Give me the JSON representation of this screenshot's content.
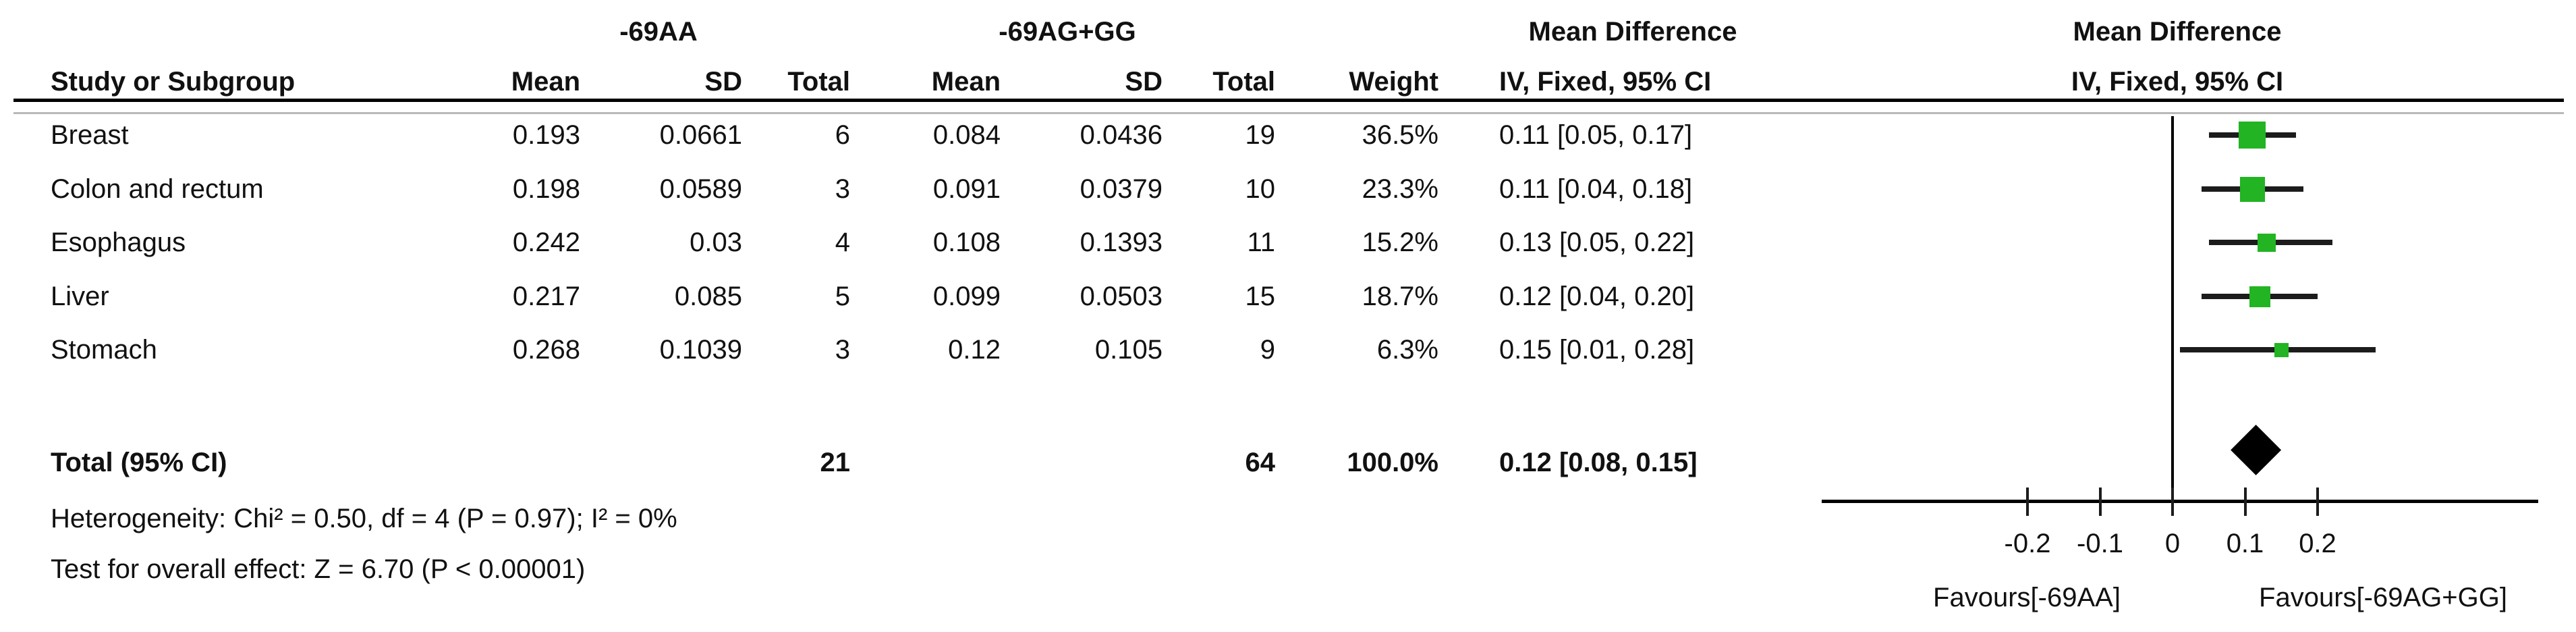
{
  "header": {
    "group1_label": "-69AA",
    "group2_label": "-69AG+GG",
    "md_title": "Mean Difference",
    "md_subtitle": "IV, Fixed, 95% CI",
    "plot_title": "Mean Difference",
    "plot_subtitle": "IV, Fixed, 95% CI",
    "cols": {
      "study": "Study or Subgroup",
      "mean": "Mean",
      "sd": "SD",
      "total": "Total",
      "weight": "Weight"
    }
  },
  "table": {
    "rows": [
      {
        "study": "Breast",
        "mean1": "0.193",
        "sd1": "0.0661",
        "t1": "6",
        "mean2": "0.084",
        "sd2": "0.0436",
        "t2": "19",
        "weight": "36.5%",
        "ci": "0.11 [0.05, 0.17]"
      },
      {
        "study": "Colon and rectum",
        "mean1": "0.198",
        "sd1": "0.0589",
        "t1": "3",
        "mean2": "0.091",
        "sd2": "0.0379",
        "t2": "10",
        "weight": "23.3%",
        "ci": "0.11 [0.04, 0.18]"
      },
      {
        "study": "Esophagus",
        "mean1": "0.242",
        "sd1": "0.03",
        "t1": "4",
        "mean2": "0.108",
        "sd2": "0.1393",
        "t2": "11",
        "weight": "15.2%",
        "ci": "0.13 [0.05, 0.22]"
      },
      {
        "study": "Liver",
        "mean1": "0.217",
        "sd1": "0.085",
        "t1": "5",
        "mean2": "0.099",
        "sd2": "0.0503",
        "t2": "15",
        "weight": "18.7%",
        "ci": "0.12 [0.04, 0.20]"
      },
      {
        "study": "Stomach",
        "mean1": "0.268",
        "sd1": "0.1039",
        "t1": "3",
        "mean2": "0.12",
        "sd2": "0.105",
        "t2": "9",
        "weight": "6.3%",
        "ci": "0.15 [0.01, 0.28]"
      }
    ],
    "total_row": {
      "label": "Total (95% CI)",
      "t1": "21",
      "t2": "64",
      "weight": "100.0%",
      "ci": "0.12 [0.08, 0.15]"
    },
    "heterogeneity": "Heterogeneity: Chi² = 0.50, df = 4 (P = 0.97); I² = 0%",
    "overall_effect": "Test for overall effect: Z = 6.70 (P < 0.00001)"
  },
  "chart_data": {
    "type": "scatter",
    "subtype": "forest-plot",
    "title": "Mean Difference",
    "effect_measure": "IV, Fixed, 95% CI",
    "studies": [
      {
        "label": "Breast",
        "est": 0.11,
        "lo": 0.05,
        "hi": 0.17,
        "weight_pct": 36.5,
        "marker_px": 40
      },
      {
        "label": "Colon and rectum",
        "est": 0.11,
        "lo": 0.04,
        "hi": 0.18,
        "weight_pct": 23.3,
        "marker_px": 37
      },
      {
        "label": "Esophagus",
        "est": 0.13,
        "lo": 0.05,
        "hi": 0.22,
        "weight_pct": 15.2,
        "marker_px": 27
      },
      {
        "label": "Liver",
        "est": 0.12,
        "lo": 0.04,
        "hi": 0.2,
        "weight_pct": 18.7,
        "marker_px": 31
      },
      {
        "label": "Stomach",
        "est": 0.15,
        "lo": 0.01,
        "hi": 0.28,
        "weight_pct": 6.3,
        "marker_px": 21
      }
    ],
    "overall": {
      "label": "Total (95% CI)",
      "est": 0.12,
      "lo": 0.08,
      "hi": 0.15
    },
    "xlim": [
      -0.48,
      0.5
    ],
    "x_ticks": [
      {
        "v": -0.2,
        "label": "-0.2"
      },
      {
        "v": -0.1,
        "label": "-0.1"
      },
      {
        "v": 0,
        "label": "0"
      },
      {
        "v": 0.1,
        "label": "0.1"
      },
      {
        "v": 0.2,
        "label": "0.2"
      }
    ],
    "favours_left": "Favours[-69AA]",
    "favours_right": "Favours[-69AG+GG]",
    "marker_color": "#22b422",
    "diamond_color": "#000000",
    "grid": false,
    "legend": false
  }
}
